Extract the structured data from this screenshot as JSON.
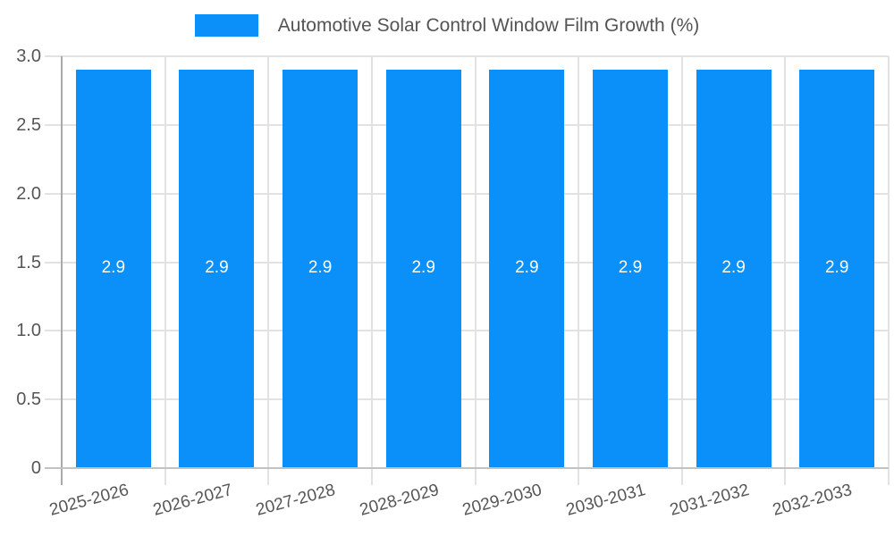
{
  "chart_data": {
    "type": "bar",
    "title": "Automotive Solar Control Window Film Growth (%)",
    "categories": [
      "2025-2026",
      "2026-2027",
      "2027-2028",
      "2028-2029",
      "2029-2030",
      "2030-2031",
      "2031-2032",
      "2032-2033"
    ],
    "values": [
      2.9,
      2.9,
      2.9,
      2.9,
      2.9,
      2.9,
      2.9,
      2.9
    ],
    "bar_labels": [
      "2.9",
      "2.9",
      "2.9",
      "2.9",
      "2.9",
      "2.9",
      "2.9",
      "2.9"
    ],
    "xlabel": "",
    "ylabel": "",
    "ylim": [
      0,
      3
    ],
    "yticks": [
      0,
      0.5,
      1,
      1.5,
      2,
      2.5,
      3
    ],
    "ytick_labels": [
      "0",
      "0.5",
      "1.0",
      "1.5",
      "2.0",
      "2.5",
      "3.0"
    ],
    "grid": true,
    "legend_position": "top-center",
    "colors": {
      "bar": "#0a90f8",
      "grid": "#e2e2e2",
      "axis": "#aaaaaa",
      "baseline": "#c2c2c2",
      "text": "#565656",
      "bar_label": "#ffffff",
      "background": "#ffffff"
    }
  },
  "legend": {
    "label": "Automotive Solar Control Window Film Growth (%)"
  }
}
